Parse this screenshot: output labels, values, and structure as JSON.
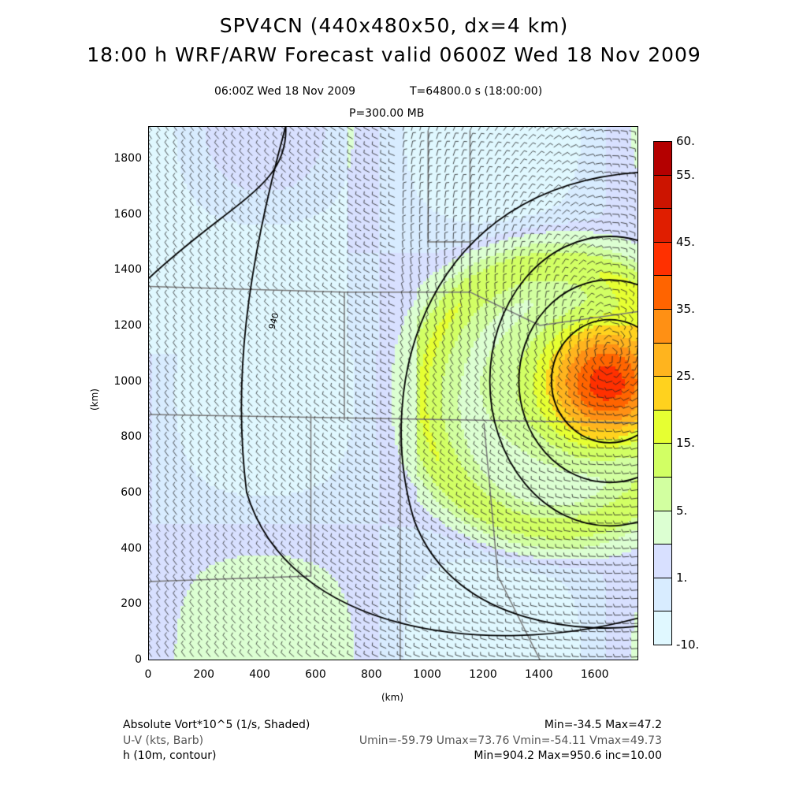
{
  "title": {
    "line1": "SPV4CN (440x480x50, dx=4 km)",
    "line2": "18:00 h WRF/ARW Forecast valid 0600Z Wed 18 Nov 2009"
  },
  "subtitle": {
    "time": "06:00Z Wed 18 Nov 2009",
    "seconds": "T=64800.0 s (18:00:00)",
    "level": "P=300.00 MB"
  },
  "axes": {
    "xlabel": "(km)",
    "ylabel": "(km)",
    "xticks": [
      "0",
      "200",
      "400",
      "600",
      "800",
      "1000",
      "1200",
      "1400",
      "1600"
    ],
    "yticks": [
      "0",
      "200",
      "400",
      "600",
      "800",
      "1000",
      "1200",
      "1400",
      "1600",
      "1800"
    ],
    "xrange": [
      0,
      1756
    ],
    "yrange": [
      0,
      1916
    ]
  },
  "contour_label": "940",
  "colorbar": {
    "labels": [
      "60.",
      "55.",
      "45.",
      "35.",
      "25.",
      "15.",
      "5.",
      "1.",
      "-10."
    ],
    "colors": [
      "#b40000",
      "#cc1400",
      "#e01e00",
      "#ff3000",
      "#ff6400",
      "#ff9014",
      "#ffb41e",
      "#ffd21e",
      "#e6ff32",
      "#d2ff64",
      "#d2ffa0",
      "#dcffd2",
      "#d8e0ff",
      "#d8ecff",
      "#e0f8ff"
    ]
  },
  "footer": {
    "vort_label": "Absolute Vort*10^5 (1/s, Shaded)",
    "vort_stats": "Min=-34.5 Max=47.2",
    "wind_label": "U-V (kts, Barb)",
    "wind_stats": "Umin=-59.79 Umax=73.76 Vmin=-54.11 Vmax=49.73",
    "h_label": "h (10m, contour)",
    "h_stats": "Min=904.2 Max=950.6 inc=10.00"
  }
}
